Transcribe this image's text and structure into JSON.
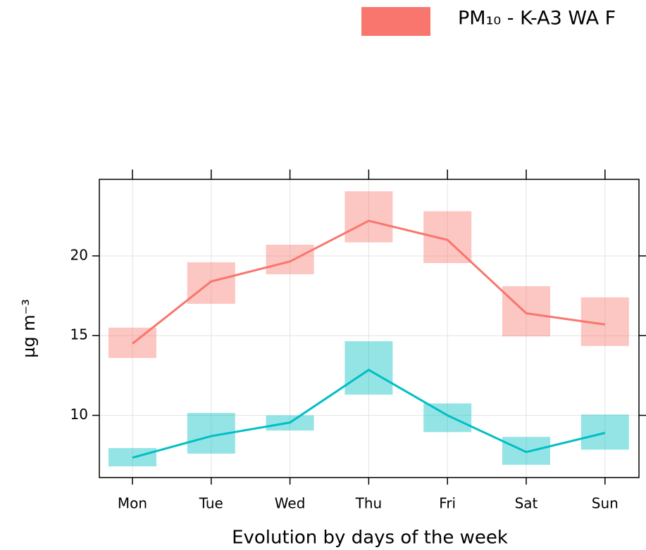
{
  "chart_data": {
    "type": "line",
    "x_label": "Evolution by days of the week",
    "y_label": "µg m⁻³",
    "categories": [
      "Mon",
      "Tue",
      "Wed",
      "Thu",
      "Fri",
      "Sat",
      "Sun"
    ],
    "series": [
      {
        "name": "PM₁₀ - K-A3 WA F",
        "color": "#F8766D",
        "values": [
          14.5,
          18.4,
          19.65,
          22.2,
          21.0,
          16.4,
          15.7
        ],
        "lower": [
          13.6,
          17.0,
          18.85,
          20.85,
          19.55,
          14.95,
          14.35
        ],
        "upper": [
          15.5,
          19.6,
          20.7,
          24.05,
          22.8,
          18.1,
          17.4
        ]
      },
      {
        "color": "#00BFC4",
        "values": [
          7.35,
          8.7,
          9.55,
          12.85,
          10.0,
          7.7,
          8.9
        ],
        "lower": [
          6.8,
          7.6,
          9.05,
          11.3,
          8.95,
          6.9,
          7.85
        ],
        "upper": [
          7.95,
          10.15,
          10.0,
          14.65,
          10.75,
          8.65,
          10.05
        ]
      }
    ],
    "ylim": [
      6.1,
      24.8
    ],
    "yticks": [
      10,
      15,
      20
    ],
    "grid": true
  }
}
